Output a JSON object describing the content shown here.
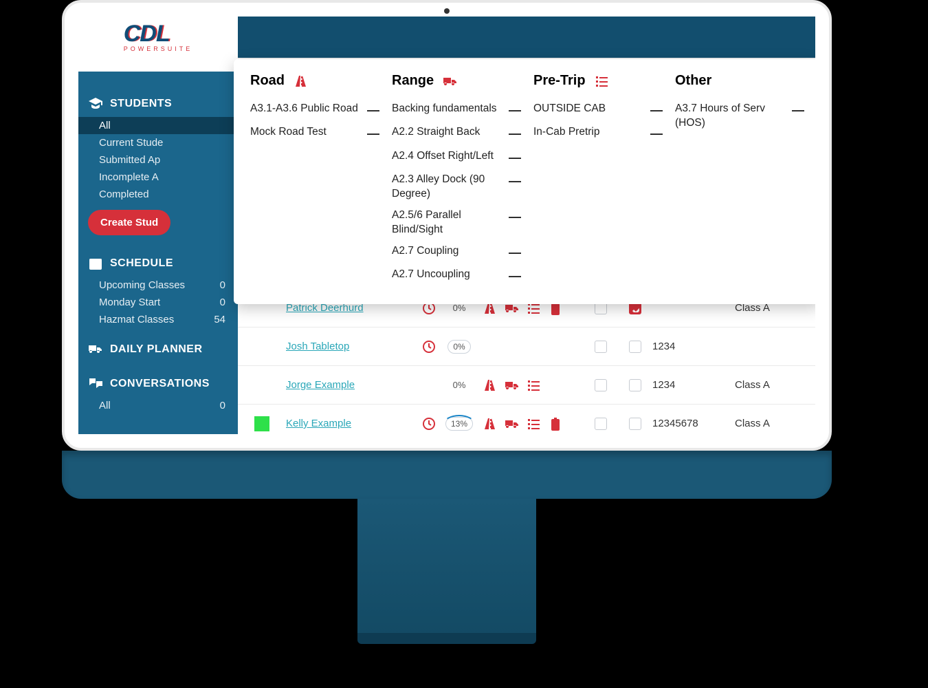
{
  "colors": {
    "sidebar": "#1b668c",
    "sidebar_dark": "#0d3e57",
    "topbar": "#124e6e",
    "accent_red": "#d6303a",
    "link": "#2aa7b8",
    "flag_green": "#2ee04a"
  },
  "logo": {
    "main": "CDL",
    "sub": "POWERSUITE"
  },
  "sidebar": {
    "students": {
      "title": "STUDENTS",
      "items": [
        {
          "label": "All",
          "selected": true
        },
        {
          "label": "Current Stude"
        },
        {
          "label": "Submitted Ap"
        },
        {
          "label": "Incomplete A"
        },
        {
          "label": "Completed"
        }
      ],
      "create_btn": "Create Stud"
    },
    "schedule": {
      "title": "SCHEDULE",
      "items": [
        {
          "label": "Upcoming Classes",
          "count": "0"
        },
        {
          "label": "Monday Start",
          "count": "0"
        },
        {
          "label": "Hazmat Classes",
          "count": "54"
        }
      ]
    },
    "daily": {
      "title": "DAILY PLANNER"
    },
    "conversations": {
      "title": "CONVERSATIONS",
      "items": [
        {
          "label": "All",
          "count": "0"
        }
      ]
    }
  },
  "popover": {
    "road": {
      "title": "Road",
      "items": [
        "A3.1-A3.6 Public Road",
        "Mock Road Test"
      ]
    },
    "range": {
      "title": "Range",
      "items": [
        "Backing fundamentals",
        "A2.2 Straight Back",
        "A2.4 Offset Right/Left",
        "A2.3 Alley Dock (90 Degree)",
        "A2.5/6 Parallel Blind/Sight",
        "A2.7 Coupling",
        "A2.7 Uncoupling"
      ]
    },
    "pretrip": {
      "title": "Pre-Trip",
      "items": [
        "OUTSIDE CAB",
        "In-Cab Pretrip"
      ]
    },
    "other": {
      "title": "Other",
      "items": [
        "A3.7 Hours of Serv (HOS)"
      ]
    }
  },
  "table": {
    "rows": [
      {
        "name": "Patrick Deerhurd",
        "clock": true,
        "pct": "0%",
        "pct_ring": false,
        "icons": [
          "road",
          "truck",
          "list",
          "clip"
        ],
        "ck1": false,
        "ck2": true,
        "num": "",
        "class": "Class A",
        "flag": null
      },
      {
        "name": "Josh Tabletop",
        "clock": true,
        "pct": "0%",
        "pct_ring": false,
        "pct_pill": true,
        "icons": [],
        "ck1": false,
        "ck2": false,
        "num": "1234",
        "class": "",
        "flag": null
      },
      {
        "name": "Jorge Example",
        "clock": false,
        "pct": "0%",
        "pct_ring": false,
        "icons": [
          "road",
          "truck",
          "list"
        ],
        "ck1": false,
        "ck2": false,
        "num": "1234",
        "class": "Class A",
        "flag": null
      },
      {
        "name": "Kelly Example",
        "clock": true,
        "pct": "13%",
        "pct_ring": true,
        "pct_pill": true,
        "icons": [
          "road",
          "truck",
          "list",
          "clip"
        ],
        "ck1": false,
        "ck2": false,
        "num": "12345678",
        "class": "Class A",
        "flag": "#2ee04a"
      }
    ]
  }
}
